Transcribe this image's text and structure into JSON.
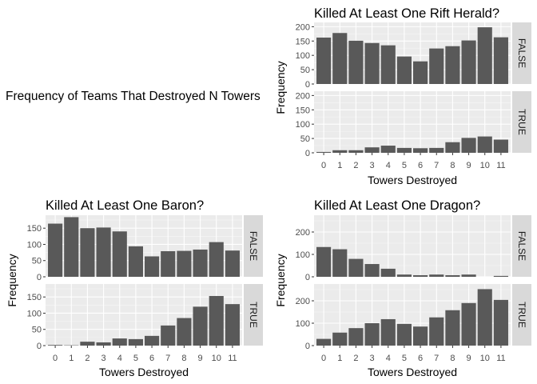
{
  "main_title": "Frequency of Teams That Destroyed N Towers",
  "chart_data": [
    {
      "type": "bar",
      "title": "Killed At Least One Rift Herald?",
      "xlabel": "Towers Destroyed",
      "ylabel": "Frequency",
      "categories": [
        "0",
        "1",
        "2",
        "3",
        "4",
        "5",
        "6",
        "7",
        "8",
        "9",
        "10",
        "11"
      ],
      "ylim": [
        0,
        215
      ],
      "yticks": [
        0,
        50,
        100,
        150,
        200
      ],
      "facets": [
        {
          "name": "FALSE",
          "values": [
            162,
            178,
            151,
            143,
            135,
            96,
            79,
            124,
            132,
            152,
            198,
            163
          ]
        },
        {
          "name": "TRUE",
          "values": [
            3,
            9,
            9,
            19,
            25,
            17,
            16,
            17,
            37,
            52,
            57,
            46
          ]
        }
      ]
    },
    {
      "type": "bar",
      "title": "Killed At Least One Baron?",
      "xlabel": "Towers Destroyed",
      "ylabel": "Frequency",
      "categories": [
        "0",
        "1",
        "2",
        "3",
        "4",
        "5",
        "6",
        "7",
        "8",
        "9",
        "10",
        "11"
      ],
      "ylim": [
        0,
        190
      ],
      "yticks": [
        0,
        50,
        100,
        150
      ],
      "facets": [
        {
          "name": "FALSE",
          "values": [
            164,
            184,
            150,
            152,
            140,
            94,
            63,
            79,
            80,
            84,
            107,
            81
          ]
        },
        {
          "name": "TRUE",
          "values": [
            2,
            1,
            12,
            10,
            22,
            20,
            30,
            62,
            85,
            120,
            153,
            128
          ]
        }
      ]
    },
    {
      "type": "bar",
      "title": "Killed At Least One Dragon?",
      "xlabel": "Towers Destroyed",
      "ylabel": "Frequency",
      "categories": [
        "0",
        "1",
        "2",
        "3",
        "4",
        "5",
        "6",
        "7",
        "8",
        "9",
        "10",
        "11"
      ],
      "ylim": [
        0,
        275
      ],
      "yticks": [
        0,
        100,
        200
      ],
      "facets": [
        {
          "name": "FALSE",
          "values": [
            133,
            123,
            80,
            57,
            36,
            10,
            7,
            10,
            7,
            10,
            0,
            4
          ]
        },
        {
          "name": "TRUE",
          "values": [
            30,
            58,
            78,
            100,
            118,
            97,
            85,
            126,
            158,
            190,
            252,
            204
          ]
        }
      ]
    }
  ]
}
